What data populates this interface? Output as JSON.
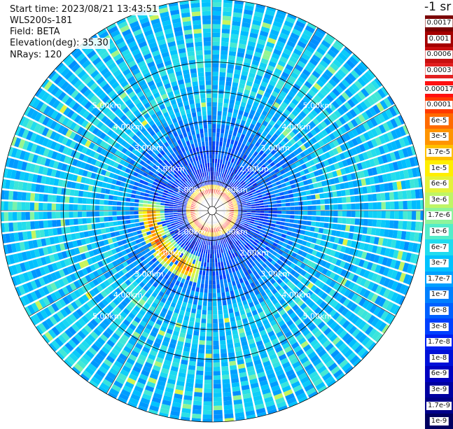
{
  "info": {
    "start_time": "Start time: 2023/08/21 13:43:51",
    "instrument": "WLS200s-181",
    "field": "Field: BETA",
    "elevation": "Elevation(deg): 35.30",
    "nrays": "NRays: 120"
  },
  "colorbar": {
    "title": "-1 sr",
    "upper": [
      {
        "label": "0.0017",
        "color": "#7a0000"
      },
      {
        "label": "0.001",
        "color": "#a40000"
      },
      {
        "label": "0.0006",
        "color": "#c81010"
      },
      {
        "label": "0.0003",
        "color": "#e22020"
      }
    ],
    "lower": [
      {
        "label": "0.00017",
        "color": "#ff1010"
      },
      {
        "label": "0.0001",
        "color": "#ff3a00"
      },
      {
        "label": "6e-5",
        "color": "#ff6a00"
      },
      {
        "label": "3e-5",
        "color": "#ff9400"
      },
      {
        "label": "1.7e-5",
        "color": "#ffc000"
      },
      {
        "label": "1e-5",
        "color": "#ffee00"
      },
      {
        "label": "6e-6",
        "color": "#e4f23a"
      },
      {
        "label": "3e-6",
        "color": "#bff565"
      },
      {
        "label": "1.7e-6",
        "color": "#8ef49a"
      },
      {
        "label": "1e-6",
        "color": "#54edc9"
      },
      {
        "label": "6e-7",
        "color": "#1fdcef"
      },
      {
        "label": "3e-7",
        "color": "#00c2ff"
      },
      {
        "label": "1.7e-7",
        "color": "#00a0ff"
      },
      {
        "label": "1e-7",
        "color": "#0080ff"
      },
      {
        "label": "6e-8",
        "color": "#0060ff"
      },
      {
        "label": "3e-8",
        "color": "#0040ff"
      },
      {
        "label": "1.7e-8",
        "color": "#0020f0"
      },
      {
        "label": "1e-8",
        "color": "#0010d8"
      },
      {
        "label": "6e-9",
        "color": "#0000c0"
      },
      {
        "label": "3e-9",
        "color": "#0000a0"
      },
      {
        "label": "1.7e-9",
        "color": "#000088"
      },
      {
        "label": "1e-9",
        "color": "#000060"
      }
    ]
  },
  "chart_data": {
    "type": "heatmap",
    "projection": "polar (plan position indicator)",
    "nrays": 120,
    "range_rings_km": [
      1,
      2,
      3,
      4,
      5
    ],
    "range_ring_labels": [
      "1.00km",
      "2.00km",
      "3.00km",
      "4.00km",
      "5.00km"
    ],
    "max_range_km": 5.6,
    "grid": true,
    "colorbar_position": "right",
    "features": {
      "background_backscatter": "1e-7 to 6e-7",
      "near_field_core": "6e-9 to 3e-8",
      "elevated_ring_km": 0.65,
      "elevated_ring_value": "1e-4 to 1.7e-4",
      "arc_sector_deg": [
        200,
        270
      ],
      "arc_range_km": [
        1.9,
        2.3
      ],
      "arc_value": "1e-5 to 1e-4"
    }
  }
}
